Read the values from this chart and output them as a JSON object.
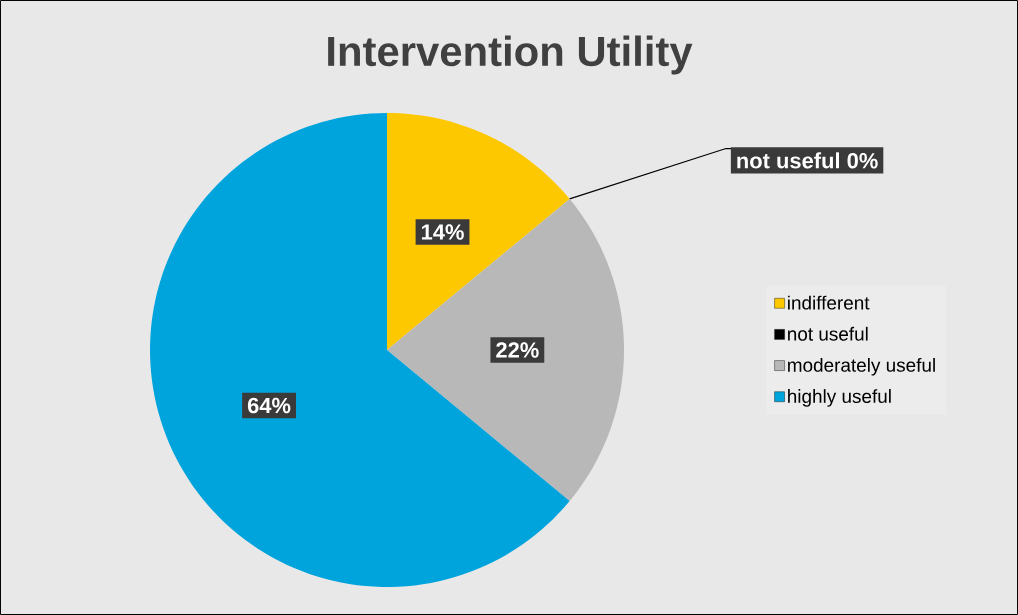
{
  "chart_data": {
    "type": "pie",
    "title": "Intervention Utility",
    "categories": [
      "indifferent",
      "not useful",
      "moderately useful",
      "highly useful"
    ],
    "values": [
      14,
      0,
      22,
      64
    ],
    "colors": [
      "#fdc800",
      "#000000",
      "#b8b8b8",
      "#00a4dc"
    ],
    "value_labels": [
      "14%",
      "not useful 0%",
      "22%",
      "64%"
    ],
    "legend": "right"
  }
}
